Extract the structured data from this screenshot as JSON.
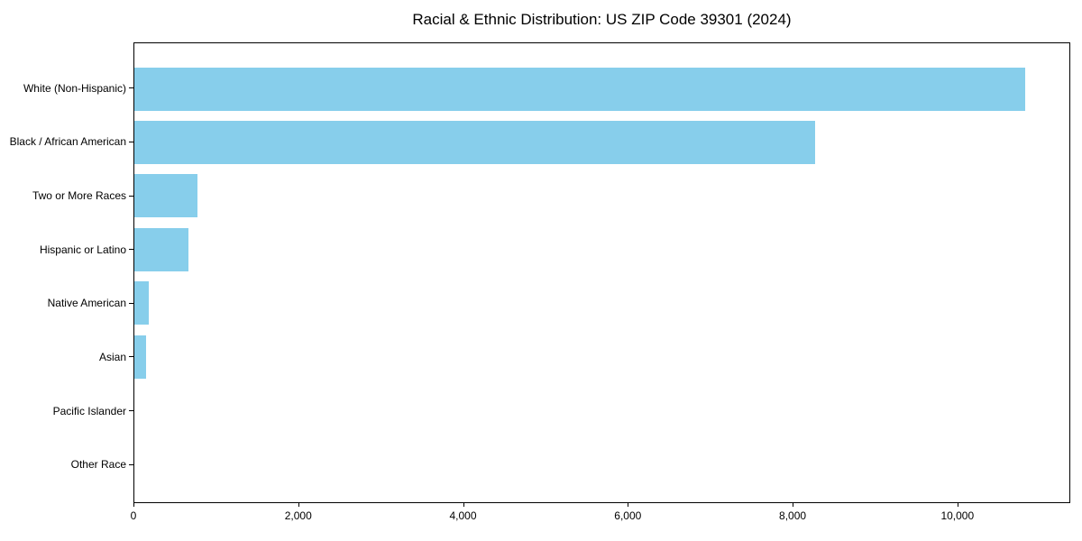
{
  "chart_data": {
    "type": "bar",
    "orientation": "horizontal",
    "title": "Racial & Ethnic Distribution: US ZIP Code 39301 (2024)",
    "categories": [
      "White (Non-Hispanic)",
      "Black / African American",
      "Two or More Races",
      "Hispanic or Latino",
      "Native American",
      "Asian",
      "Pacific Islander",
      "Other Race"
    ],
    "values": [
      10830,
      8280,
      770,
      655,
      170,
      145,
      0,
      0
    ],
    "xlabel": "",
    "ylabel": "",
    "xlim": [
      0,
      11370
    ],
    "x_ticks": [
      0,
      2000,
      4000,
      6000,
      8000,
      10000
    ],
    "x_tick_labels": [
      "0",
      "2,000",
      "4,000",
      "6,000",
      "8,000",
      "10,000"
    ],
    "bar_color": "#87CEEB",
    "axis_color": "#000000",
    "background_color": "#ffffff",
    "grid": false,
    "legend": null
  }
}
